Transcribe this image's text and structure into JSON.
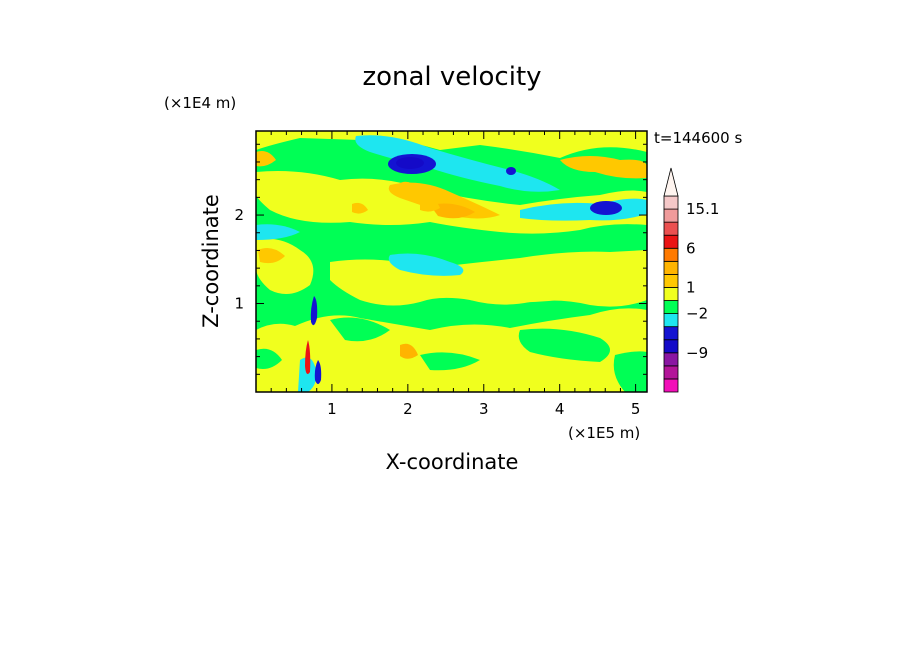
{
  "chart_data": {
    "type": "heatmap",
    "title": "zonal velocity",
    "xlabel": "X-coordinate",
    "ylabel": "Z-coordinate",
    "x_unit": "(×1E5 m)",
    "y_unit": "(×1E4 m)",
    "time_label": "t=144600 s",
    "xlim": [
      0,
      5.15
    ],
    "ylim": [
      0,
      2.95
    ],
    "x_ticks": [
      {
        "value": 1,
        "label": "1"
      },
      {
        "value": 2,
        "label": "2"
      },
      {
        "value": 3,
        "label": "3"
      },
      {
        "value": 4,
        "label": "4"
      },
      {
        "value": 5,
        "label": "5"
      }
    ],
    "y_ticks": [
      {
        "value": 1,
        "label": "1"
      },
      {
        "value": 2,
        "label": "2"
      }
    ],
    "colorbar": {
      "levels_bottom_to_top": [
        "#f20fb8",
        "#b31499",
        "#8a16a2",
        "#140ac8",
        "#1414d2",
        "#1ee6f0",
        "#00ff55",
        "#f0ff1e",
        "#ffc800",
        "#ffb400",
        "#ff7a00",
        "#eb1414",
        "#eb5050",
        "#f09b9b",
        "#f5c8c8",
        "#fff5f0"
      ],
      "labels": [
        {
          "value": "15.1",
          "level": 14
        },
        {
          "value": "6",
          "level": 11
        },
        {
          "value": "1",
          "level": 8
        },
        {
          "value": "−2",
          "level": 6
        },
        {
          "value": "−9",
          "level": 3
        }
      ]
    },
    "field_features": [
      {
        "x": 1.75,
        "z": 2.55,
        "kind": "negative max (blue)"
      },
      {
        "x": 4.6,
        "z": 2.05,
        "kind": "negative (blue)"
      },
      {
        "x": 4.85,
        "z": 2.55,
        "kind": "positive (orange)"
      },
      {
        "x": 2.4,
        "z": 2.1,
        "kind": "positive (orange)"
      },
      {
        "x": 0.8,
        "z": 0.95,
        "kind": "negative streak (blue)"
      }
    ],
    "colors": {
      "background_field": "#00ff55",
      "positive_low": "#f0ff1e",
      "positive_mid": "#ffc800",
      "positive_high": "#ffb400",
      "negative_low": "#1ee6f0",
      "negative_high": "#1414d2"
    }
  }
}
